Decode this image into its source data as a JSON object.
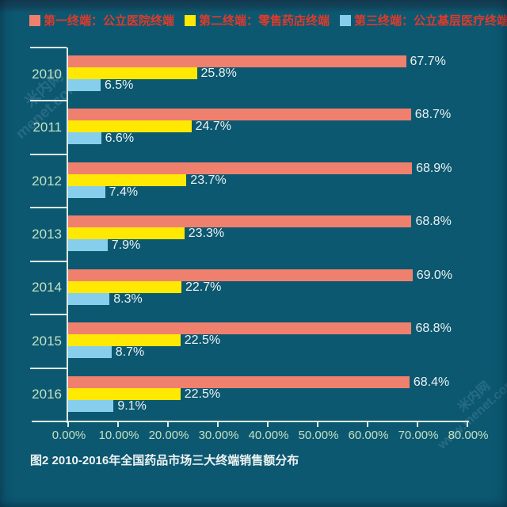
{
  "legend": [
    {
      "label": "第一终端：公立医院终端",
      "color": "#f0806e"
    },
    {
      "label": "第二终端：零售药店终端",
      "color": "#ffe903"
    },
    {
      "label": "第三终端：公立基层医疗终端",
      "color": "#87ceec"
    }
  ],
  "caption": "图2  2010-2016年全国药品市场三大终端销售额分布",
  "watermark": {
    "top_left_line1": "米内网",
    "top_left_line2": "menet.com.cn",
    "bottom_right_line1": "米内网",
    "bottom_right_line2": "www.menet.com.cn"
  },
  "colors": {
    "background": "#0c5871",
    "axis": "#dcebe4",
    "year_label": "#c3e0c0",
    "tick_label": "#c3e0c0",
    "value_label": "#ecf2f1",
    "legend_text": "#e03a2a",
    "caption_text": "#eef3f2"
  },
  "chart_data": {
    "type": "bar",
    "orientation": "horizontal",
    "title": "图2  2010-2016年全国药品市场三大终端销售额分布",
    "categories": [
      "2010",
      "2011",
      "2012",
      "2013",
      "2014",
      "2015",
      "2016"
    ],
    "series": [
      {
        "name": "第一终端：公立医院终端",
        "color": "#f0806e",
        "values": [
          67.7,
          68.7,
          68.9,
          68.8,
          69.0,
          68.8,
          68.4
        ]
      },
      {
        "name": "第二终端：零售药店终端",
        "color": "#ffe903",
        "values": [
          25.8,
          24.7,
          23.7,
          23.3,
          22.7,
          22.5,
          22.5
        ]
      },
      {
        "name": "第三终端：公立基层医疗终端",
        "color": "#87ceec",
        "values": [
          6.5,
          6.6,
          7.4,
          7.9,
          8.3,
          8.7,
          9.1
        ]
      }
    ],
    "value_suffix": "%",
    "xlabel": "",
    "ylabel": "",
    "x_axis": {
      "min": 0,
      "max": 80,
      "ticks": [
        "0.00%",
        "10.00%",
        "20.00%",
        "30.00%",
        "40.00%",
        "50.00%",
        "60.00%",
        "70.00%",
        "80.00%"
      ]
    },
    "grid": false,
    "legend_position": "top"
  }
}
